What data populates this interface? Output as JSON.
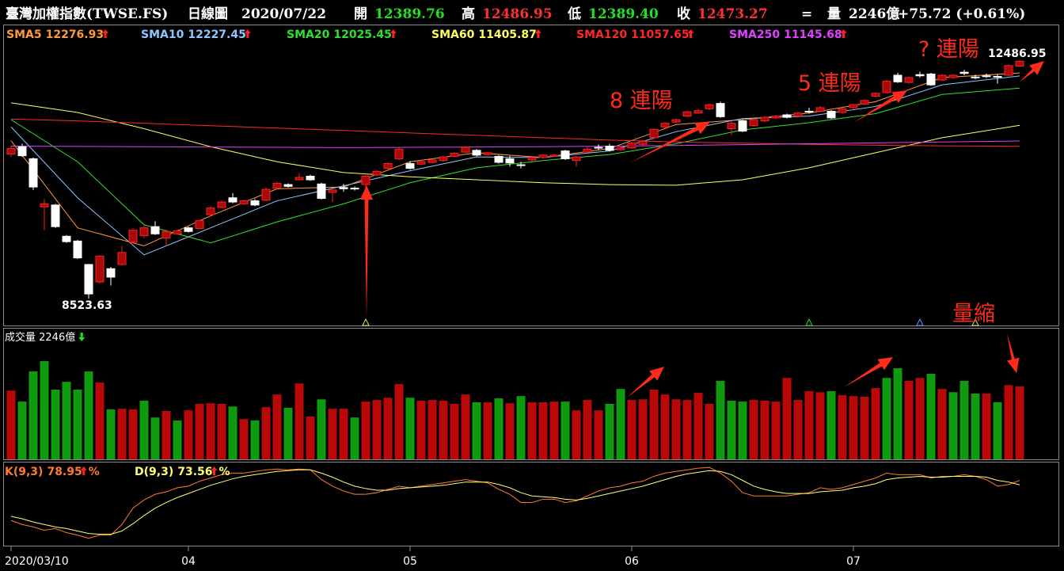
{
  "header": {
    "items": [
      {
        "text": "臺灣加權指數(TWSE.FS)",
        "color": "#ffffff"
      },
      {
        "text": "日線圖",
        "color": "#ffffff"
      },
      {
        "text": "2020/07/22",
        "color": "#ffffff"
      },
      {
        "text": "開",
        "color": "#ffffff"
      },
      {
        "text": "12389.76",
        "color": "#20e020"
      },
      {
        "text": "高",
        "color": "#ffffff"
      },
      {
        "text": "12486.95",
        "color": "#ff3030"
      },
      {
        "text": "低",
        "color": "#ffffff"
      },
      {
        "text": "12389.40",
        "color": "#20e020"
      },
      {
        "text": "收",
        "color": "#ffffff"
      },
      {
        "text": "12473.27",
        "color": "#ff3030"
      },
      {
        "text": "=",
        "color": "#ffffff"
      },
      {
        "text": "量",
        "color": "#ffffff"
      },
      {
        "text": "2246億",
        "color": "#ffffff"
      },
      {
        "text": "+75.72 (+0.61%)",
        "color": "#ffffff"
      }
    ]
  },
  "chart_data": [
    {
      "type": "candlestick",
      "categories": [
        "2020/03/10",
        null,
        null,
        null,
        null,
        null,
        null,
        null,
        null,
        null,
        null,
        null,
        null,
        null,
        null,
        null,
        "04",
        null,
        null,
        null,
        null,
        null,
        null,
        null,
        null,
        null,
        null,
        null,
        null,
        null,
        null,
        null,
        null,
        null,
        null,
        null,
        "05",
        null,
        null,
        null,
        null,
        null,
        null,
        null,
        null,
        null,
        null,
        null,
        null,
        null,
        null,
        null,
        null,
        null,
        null,
        null,
        "06",
        null,
        null,
        null,
        null,
        null,
        null,
        null,
        null,
        null,
        null,
        null,
        null,
        null,
        null,
        null,
        null,
        null,
        null,
        null,
        "07",
        null,
        null,
        null,
        null,
        null,
        null,
        null,
        null,
        null,
        null,
        null,
        null,
        null,
        null,
        null
      ],
      "open": [
        10930,
        11050,
        10850,
        10050,
        10080,
        9560,
        9480,
        9090,
        8800,
        9020,
        9090,
        9460,
        9570,
        9720,
        9530,
        9600,
        9700,
        9690,
        9920,
        10040,
        10200,
        10100,
        10150,
        10160,
        10360,
        10420,
        10500,
        10560,
        10430,
        10290,
        10370,
        10360,
        10420,
        10580,
        10690,
        10850,
        10770,
        10760,
        10790,
        10820,
        10890,
        10960,
        10990,
        10920,
        10890,
        10850,
        10750,
        10830,
        10870,
        10890,
        10980,
        10820,
        10960,
        11040,
        11060,
        11000,
        11030,
        11090,
        11200,
        11380,
        11460,
        11560,
        11610,
        11680,
        11770,
        11350,
        11480,
        11400,
        11480,
        11530,
        11580,
        11560,
        11640,
        11640,
        11640,
        11620,
        11700,
        11760,
        11890,
        11950,
        12240,
        12120,
        12250,
        12260,
        12160,
        12200,
        12290,
        12210,
        12230,
        12220,
        12240,
        12389.76
      ],
      "high": [
        11070,
        11100,
        10870,
        10180,
        10100,
        9580,
        9500,
        9100,
        9250,
        9050,
        9400,
        9700,
        9740,
        9810,
        9670,
        9670,
        9720,
        9840,
        10060,
        10150,
        10280,
        10170,
        10180,
        10370,
        10470,
        10440,
        10610,
        10580,
        10450,
        10350,
        10430,
        10390,
        10580,
        10660,
        10790,
        11030,
        10810,
        10820,
        10850,
        10900,
        10960,
        11060,
        11010,
        10970,
        10910,
        10900,
        10800,
        10890,
        10930,
        10930,
        11000,
        10900,
        11050,
        11090,
        11100,
        11060,
        11130,
        11160,
        11360,
        11460,
        11520,
        11650,
        11680,
        11770,
        11800,
        11470,
        11500,
        11530,
        11560,
        11580,
        11600,
        11630,
        11700,
        11730,
        11660,
        11700,
        11770,
        11840,
        11960,
        12160,
        12280,
        12220,
        12300,
        12280,
        12260,
        12260,
        12330,
        12250,
        12270,
        12260,
        12420,
        12486.95
      ],
      "low": [
        10880,
        10880,
        10330,
        9660,
        9700,
        9450,
        9180,
        8523.63,
        8770,
        8740,
        9070,
        9440,
        9530,
        9580,
        9400,
        9580,
        9620,
        9680,
        9900,
        10020,
        10110,
        10080,
        10060,
        10140,
        10340,
        10370,
        10490,
        10480,
        10170,
        10130,
        10300,
        10320,
        10360,
        10560,
        10670,
        10830,
        10670,
        10740,
        10770,
        10800,
        10870,
        10950,
        10890,
        10900,
        10770,
        10720,
        10690,
        10810,
        10850,
        10880,
        10830,
        10720,
        10940,
        11000,
        10970,
        10990,
        11010,
        11070,
        11180,
        11360,
        11440,
        11540,
        11600,
        11660,
        11530,
        11240,
        11290,
        11380,
        11460,
        11510,
        11520,
        11540,
        11600,
        11620,
        11510,
        11600,
        11680,
        11740,
        11870,
        11930,
        12110,
        12100,
        12200,
        12060,
        12140,
        12180,
        12240,
        12170,
        12190,
        12100,
        12220,
        12389.4
      ],
      "close": [
        11020,
        10900,
        10380,
        10100,
        9720,
        9470,
        9200,
        8600,
        9230,
        8880,
        9290,
        9660,
        9700,
        9600,
        9640,
        9650,
        9640,
        9820,
        10030,
        10130,
        10130,
        10150,
        10080,
        10340,
        10440,
        10390,
        10540,
        10500,
        10190,
        10330,
        10350,
        10350,
        10560,
        10640,
        10770,
        11010,
        10690,
        10800,
        10830,
        10880,
        10940,
        11040,
        10910,
        10950,
        10790,
        10780,
        10740,
        10870,
        10910,
        10910,
        10850,
        10880,
        11010,
        11030,
        10990,
        11030,
        11110,
        11140,
        11340,
        11440,
        11500,
        11630,
        11650,
        11750,
        11550,
        11440,
        11310,
        11500,
        11540,
        11560,
        11540,
        11610,
        11630,
        11700,
        11530,
        11680,
        11750,
        11820,
        11940,
        12140,
        12130,
        12200,
        12230,
        12080,
        12240,
        12240,
        12270,
        12200,
        12220,
        12210,
        12400,
        12473.27
      ],
      "up_color": "#ff2020",
      "down_color": "#ffffff",
      "ylim": [
        8075,
        13070
      ],
      "ma": [
        {
          "name": "SMA5",
          "color": "#ff9a3c",
          "x": [
            0,
            6,
            12,
            18,
            24,
            30,
            36,
            42,
            48,
            54,
            60,
            66,
            72,
            78,
            84,
            91
          ],
          "values": [
            11150,
            9700,
            9400,
            9900,
            10350,
            10380,
            10800,
            10950,
            10870,
            11020,
            11420,
            11500,
            11610,
            11800,
            12200,
            12276.93
          ]
        },
        {
          "name": "SMA10",
          "color": "#8cc8ff",
          "x": [
            0,
            6,
            12,
            18,
            24,
            30,
            36,
            42,
            48,
            54,
            60,
            66,
            72,
            78,
            84,
            91
          ],
          "values": [
            11380,
            10200,
            9250,
            9700,
            10150,
            10400,
            10650,
            10880,
            10870,
            10980,
            11300,
            11520,
            11560,
            11720,
            12080,
            12227.45
          ]
        },
        {
          "name": "SMA20",
          "color": "#30e030",
          "x": [
            0,
            6,
            12,
            18,
            24,
            30,
            36,
            42,
            48,
            54,
            60,
            66,
            72,
            78,
            84,
            91
          ],
          "values": [
            11500,
            10800,
            9750,
            9450,
            9800,
            10100,
            10450,
            10700,
            10820,
            10920,
            11100,
            11330,
            11450,
            11600,
            11920,
            12025.45
          ]
        },
        {
          "name": "SMA60",
          "color": "#ffff60",
          "x": [
            0,
            6,
            12,
            18,
            24,
            30,
            36,
            42,
            48,
            54,
            60,
            66,
            72,
            78,
            84,
            91
          ],
          "values": [
            11780,
            11620,
            11350,
            11050,
            10800,
            10620,
            10550,
            10500,
            10450,
            10420,
            10410,
            10500,
            10700,
            10950,
            11200,
            11405.87
          ]
        },
        {
          "name": "SMA120",
          "color": "#ff2828",
          "x": [
            0,
            6,
            12,
            18,
            24,
            30,
            36,
            42,
            48,
            54,
            60,
            66,
            72,
            78,
            84,
            91
          ],
          "values": [
            11510,
            11480,
            11440,
            11400,
            11360,
            11320,
            11280,
            11240,
            11200,
            11160,
            11130,
            11110,
            11090,
            11075,
            11065,
            11057.65
          ]
        },
        {
          "name": "SMA250",
          "color": "#e040ff",
          "x": [
            0,
            6,
            12,
            18,
            24,
            30,
            36,
            42,
            48,
            54,
            60,
            66,
            72,
            78,
            84,
            91
          ],
          "values": [
            11060,
            11055,
            11050,
            11045,
            11040,
            11035,
            11040,
            11045,
            11050,
            11060,
            11070,
            11085,
            11100,
            11115,
            11130,
            11145.68
          ]
        }
      ],
      "annotations": [
        {
          "text": "8 連陽"
        },
        {
          "text": "5 連陽"
        },
        {
          "text": "? 連陽"
        },
        {
          "text": "量縮"
        }
      ]
    },
    {
      "type": "bar",
      "title": "成交量 2246億",
      "values": [
        2120,
        1780,
        2710,
        3030,
        2150,
        2390,
        2150,
        2710,
        2370,
        1540,
        1560,
        1540,
        1810,
        1290,
        1490,
        1200,
        1510,
        1710,
        1730,
        1710,
        1630,
        1240,
        1200,
        1610,
        2000,
        1590,
        2340,
        1320,
        1850,
        1560,
        1560,
        1290,
        1780,
        1830,
        1900,
        2320,
        1900,
        1810,
        1830,
        1810,
        1710,
        2000,
        1760,
        1760,
        1880,
        1730,
        1950,
        1760,
        1760,
        1780,
        1780,
        1510,
        1830,
        1510,
        1710,
        2170,
        1830,
        1850,
        2150,
        2000,
        1850,
        1830,
        2050,
        1710,
        2420,
        1810,
        1780,
        1830,
        1810,
        1780,
        2510,
        1830,
        2100,
        2070,
        2100,
        1980,
        1950,
        1930,
        2200,
        2510,
        2810,
        2420,
        2510,
        2640,
        2170,
        2070,
        2420,
        2030,
        2030,
        1760,
        2290,
        2246
      ],
      "colors": [
        "#b80808",
        "#109a10",
        "#109a10",
        "#109a10",
        "#109a10",
        "#109a10",
        "#109a10",
        "#109a10",
        "#b80808",
        "#109a10",
        "#b80808",
        "#b80808",
        "#109a10",
        "#109a10",
        "#b80808",
        "#109a10",
        "#b80808",
        "#b80808",
        "#b80808",
        "#b80808",
        "#109a10",
        "#b80808",
        "#109a10",
        "#b80808",
        "#b80808",
        "#109a10",
        "#b80808",
        "#b80808",
        "#109a10",
        "#b80808",
        "#b80808",
        "#109a10",
        "#b80808",
        "#b80808",
        "#b80808",
        "#b80808",
        "#109a10",
        "#b80808",
        "#b80808",
        "#b80808",
        "#b80808",
        "#b80808",
        "#109a10",
        "#b80808",
        "#109a10",
        "#b80808",
        "#109a10",
        "#b80808",
        "#b80808",
        "#b80808",
        "#109a10",
        "#b80808",
        "#b80808",
        "#b80808",
        "#109a10",
        "#109a10",
        "#b80808",
        "#b80808",
        "#b80808",
        "#b80808",
        "#b80808",
        "#b80808",
        "#b80808",
        "#b80808",
        "#109a10",
        "#109a10",
        "#109a10",
        "#b80808",
        "#b80808",
        "#b80808",
        "#b80808",
        "#b80808",
        "#b80808",
        "#b80808",
        "#109a10",
        "#b80808",
        "#b80808",
        "#b80808",
        "#b80808",
        "#109a10",
        "#109a10",
        "#b80808",
        "#b80808",
        "#109a10",
        "#b80808",
        "#109a10",
        "#109a10",
        "#109a10",
        "#b80808",
        "#109a10",
        "#b80808",
        "#b80808"
      ],
      "ylim": [
        0,
        4030
      ]
    },
    {
      "type": "line",
      "ylim": [
        0,
        100
      ],
      "series": [
        {
          "name": "K(9,3)",
          "color": "#ff7a30",
          "suffix": "%",
          "values": [
            30,
            25,
            22,
            18,
            20,
            15,
            12,
            8,
            12,
            12,
            25,
            45,
            55,
            62,
            65,
            70,
            72,
            78,
            82,
            86,
            88,
            88,
            90,
            92,
            93,
            92,
            93,
            92,
            80,
            72,
            66,
            62,
            62,
            64,
            68,
            72,
            70,
            72,
            74,
            76,
            78,
            80,
            78,
            76,
            68,
            62,
            52,
            52,
            56,
            56,
            52,
            54,
            60,
            66,
            70,
            72,
            76,
            78,
            84,
            88,
            90,
            92,
            94,
            95,
            88,
            78,
            64,
            60,
            60,
            60,
            60,
            62,
            64,
            70,
            68,
            70,
            74,
            78,
            82,
            88,
            86,
            86,
            86,
            82,
            84,
            84,
            86,
            84,
            80,
            72,
            74,
            78.95
          ]
        },
        {
          "name": "D(9,3)",
          "color": "#ffff70",
          "suffix": "%",
          "values": [
            35,
            32,
            28,
            25,
            22,
            20,
            17,
            14,
            13,
            13,
            17,
            26,
            36,
            45,
            52,
            58,
            63,
            68,
            73,
            77,
            81,
            84,
            86,
            88,
            90,
            91,
            92,
            92,
            88,
            83,
            77,
            72,
            69,
            67,
            67,
            69,
            70,
            71,
            72,
            73,
            75,
            77,
            77,
            77,
            74,
            70,
            64,
            60,
            59,
            58,
            56,
            55,
            57,
            60,
            63,
            66,
            69,
            72,
            76,
            80,
            84,
            87,
            89,
            91,
            90,
            86,
            79,
            72,
            68,
            65,
            63,
            63,
            63,
            65,
            66,
            67,
            70,
            72,
            75,
            80,
            82,
            83,
            84,
            83,
            83,
            84,
            84,
            84,
            83,
            79,
            77,
            73.56
          ]
        }
      ]
    }
  ]
}
